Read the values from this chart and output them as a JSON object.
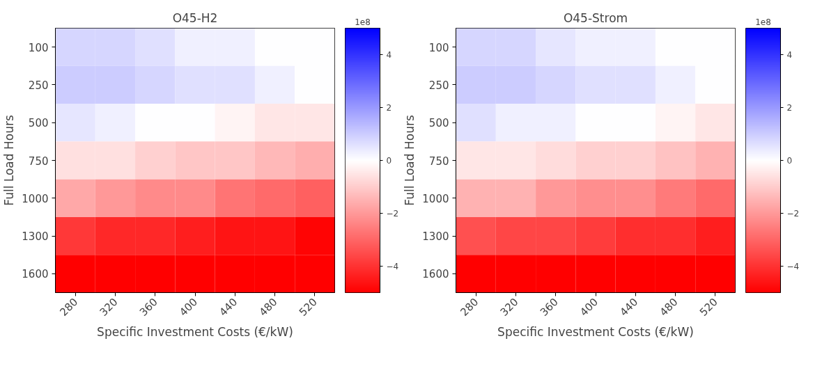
{
  "chart_data": [
    {
      "type": "heatmap",
      "title": "O45-H2",
      "xlabel": "Specific Investment Costs (€/kW)",
      "ylabel": "Full Load Hours",
      "clabel": "1e8",
      "categories": [
        "280",
        "320",
        "360",
        "400",
        "440",
        "480",
        "520"
      ],
      "y_categories": [
        "100",
        "250",
        "500",
        "750",
        "1000",
        "1300",
        "1600"
      ],
      "cells": [
        [
          0.8,
          0.8,
          0.6,
          0.3,
          0.3,
          0,
          0
        ],
        [
          1.0,
          1.0,
          0.8,
          0.6,
          0.6,
          0.3,
          0
        ],
        [
          0.5,
          0.3,
          0,
          0,
          -0.2,
          -0.5,
          -0.5
        ],
        [
          -0.6,
          -0.6,
          -0.9,
          -1.1,
          -1.1,
          -1.4,
          -1.6
        ],
        [
          -1.7,
          -2.0,
          -2.3,
          -2.3,
          -2.7,
          -2.9,
          -3.1
        ],
        [
          -3.9,
          -4.2,
          -4.2,
          -4.4,
          -4.6,
          -4.6,
          -4.9
        ],
        [
          -5,
          -5,
          -5,
          -5,
          -5,
          -5,
          -5
        ]
      ],
      "clim": [
        -5,
        5
      ],
      "cticks": [
        -4,
        -2,
        0,
        2,
        4
      ]
    },
    {
      "type": "heatmap",
      "title": "O45-Strom",
      "xlabel": "Specific Investment Costs (€/kW)",
      "ylabel": "Full Load Hours",
      "clabel": "1e8",
      "categories": [
        "280",
        "320",
        "360",
        "400",
        "440",
        "480",
        "520"
      ],
      "y_categories": [
        "100",
        "250",
        "500",
        "750",
        "1000",
        "1300",
        "1600"
      ],
      "cells": [
        [
          0.8,
          0.8,
          0.5,
          0.3,
          0.3,
          0,
          0
        ],
        [
          1.0,
          1.0,
          0.8,
          0.6,
          0.6,
          0.3,
          0
        ],
        [
          0.6,
          0.3,
          0.3,
          0,
          0,
          -0.2,
          -0.5
        ],
        [
          -0.5,
          -0.5,
          -0.7,
          -0.9,
          -0.9,
          -1.2,
          -1.5
        ],
        [
          -1.5,
          -1.5,
          -2.0,
          -2.2,
          -2.2,
          -2.6,
          -2.9
        ],
        [
          -3.4,
          -3.6,
          -3.6,
          -3.8,
          -4.1,
          -4.1,
          -4.4
        ],
        [
          -5,
          -5,
          -5,
          -5,
          -5,
          -5,
          -5
        ]
      ],
      "clim": [
        -5,
        5
      ],
      "cticks": [
        -4,
        -2,
        0,
        2,
        4
      ]
    }
  ]
}
